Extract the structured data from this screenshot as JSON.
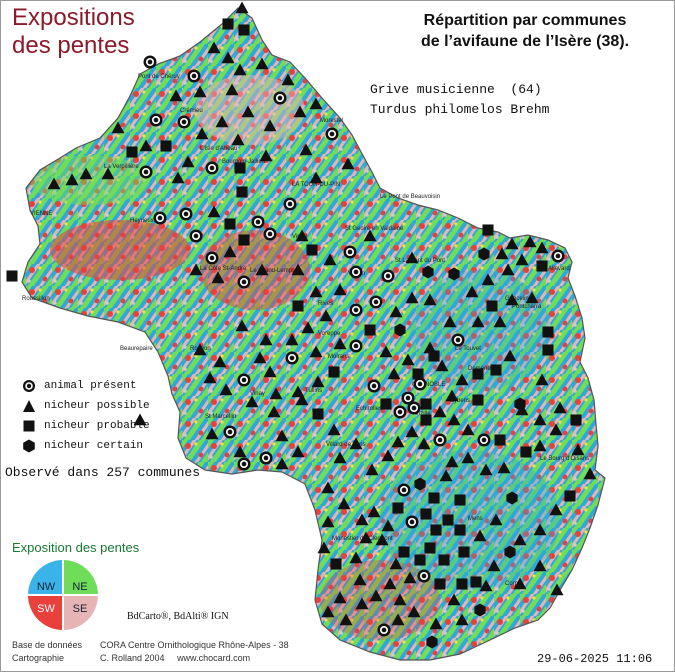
{
  "header": {
    "title_left_line1": "Expositions",
    "title_left_line2": "des pentes",
    "title_right_line1": "Répartition par communes",
    "title_right_line2": "de l’avifaune de l’Isère (38).",
    "species_line1": "Grive musicienne  (64)",
    "species_line2": "Turdus philomelos Brehm"
  },
  "legend": {
    "items": [
      {
        "icon": "animal-present-icon",
        "label": "animal présent"
      },
      {
        "icon": "possible-nester-icon",
        "label": "nicheur possible"
      },
      {
        "icon": "probable-nester-icon",
        "label": "nicheur probable"
      },
      {
        "icon": "certain-nester-icon",
        "label": "nicheur certain"
      }
    ],
    "observed": "Observé dans 257 communes"
  },
  "exposition": {
    "title": "Exposition des pentes",
    "quadrants": [
      {
        "label": "NW",
        "color": "#3ab3e8"
      },
      {
        "label": "NE",
        "color": "#6fdc5a"
      },
      {
        "label": "SW",
        "color": "#e8413c"
      },
      {
        "label": "SE",
        "color": "#e6b4b4"
      }
    ]
  },
  "credits": {
    "ign": "BdCarto®, BdAlti® IGN",
    "db_key": "Base de données",
    "db_value": "CORA Centre Ornithologique Rhône-Alpes - 38",
    "carto_key": "Cartographie",
    "carto_value": "C. Rolland 2004",
    "website": "www.chocard.com"
  },
  "datetime": "29-06-2025 11:06",
  "places": [
    "Pont de Chéruy",
    "L'Isle d'Abeau",
    "Bourgoin-Jallieu",
    "Morestel",
    "LA TOUR-DU-PIN",
    "Le Pont de Beauvoisin",
    "VIENNE",
    "Roussillon",
    "La Côte St-André",
    "Le Grand-Lemps",
    "Virieu",
    "St Geoire en Valdaine",
    "St Laurent du Pont",
    "Voiron",
    "Rives",
    "St Marcellin",
    "Voreppe",
    "Goncelin",
    "GRENOBLE",
    "Vizille",
    "Villard de Lans",
    "Le Bourg d'Oisans",
    "Allevard",
    "Pontcharra",
    "Mens",
    "Corps",
    "Monestier de Clermont",
    "Roybon",
    "Eybens",
    "Le Touvet",
    "Crémieu",
    "Beaurepaire",
    "La Verpillière",
    "Heyrieux",
    "Vinay",
    "Echirolles",
    "Tullins",
    "Domène",
    "Moirans"
  ],
  "colors": {
    "title_left": "#8b1a2b",
    "exposition_title": "#1a7a34",
    "map_base": "#2fa8d8"
  }
}
